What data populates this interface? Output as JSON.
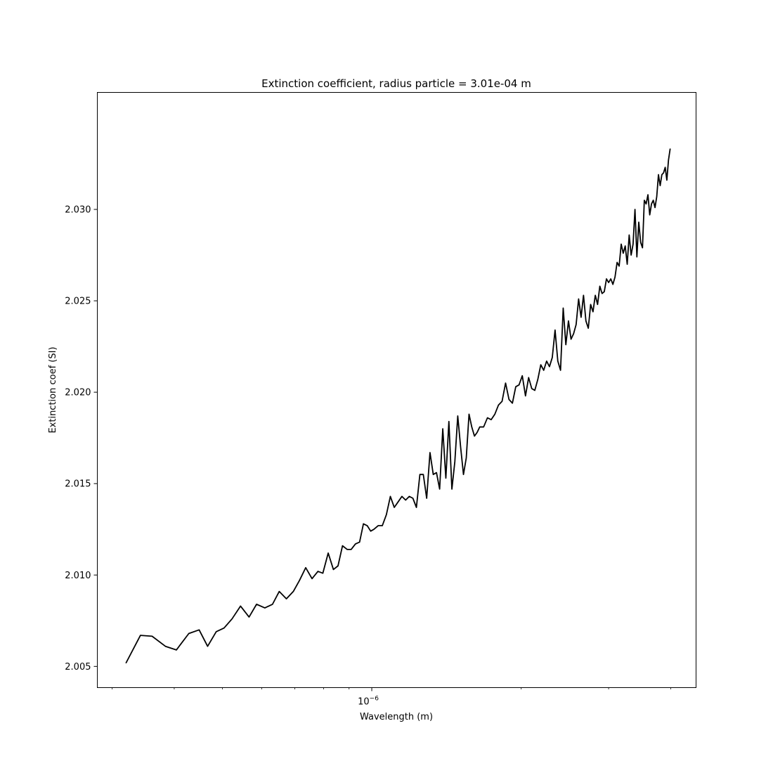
{
  "chart_data": {
    "type": "line",
    "title": "Extinction coefficient, radius particle = 3.01e-04 m",
    "xlabel": "Wavelength (m)",
    "ylabel": "Extinction coef (SI)",
    "xscale": "log",
    "xlim": [
      2.8e-07,
      4.5e-06
    ],
    "ylim": [
      2.00384,
      2.0364
    ],
    "grid": false,
    "line_color": "#000000",
    "x_major_ticks": [
      {
        "value": 1e-06,
        "base": "10",
        "exponent": "−6"
      }
    ],
    "x_minor_ticks": [
      3e-07,
      4e-07,
      5e-07,
      6e-07,
      7e-07,
      8e-07,
      9e-07,
      2e-06,
      3e-06,
      4e-06
    ],
    "y_ticks": [
      {
        "value": 2.005,
        "label": "2.005"
      },
      {
        "value": 2.01,
        "label": "2.010"
      },
      {
        "value": 2.015,
        "label": "2.015"
      },
      {
        "value": 2.02,
        "label": "2.020"
      },
      {
        "value": 2.025,
        "label": "2.025"
      },
      {
        "value": 2.03,
        "label": "2.030"
      }
    ],
    "series": [
      {
        "x": [
          3.2e-07,
          3.42e-07,
          3.61e-07,
          3.84e-07,
          4.04e-07,
          4.28e-07,
          4.49e-07,
          4.67e-07,
          4.86e-07,
          5.04e-07,
          5.23e-07,
          5.44e-07,
          5.66e-07,
          5.86e-07,
          6.09e-07,
          6.31e-07,
          6.51e-07,
          6.73e-07,
          6.95e-07,
          7.15e-07,
          7.36e-07,
          7.58e-07,
          7.79e-07,
          7.97e-07,
          8.17e-07,
          8.37e-07,
          8.55e-07,
          8.73e-07,
          8.92e-07,
          9.09e-07,
          9.27e-07,
          9.45e-07,
          9.62e-07,
          9.79e-07,
          9.95e-07,
          1.01e-06,
          1.03e-06,
          1.05e-06,
          1.07e-06,
          1.09e-06,
          1.11e-06,
          1.13e-06,
          1.15e-06,
          1.17e-06,
          1.19e-06,
          1.21e-06,
          1.23e-06,
          1.25e-06,
          1.27e-06,
          1.29e-06,
          1.31e-06,
          1.33e-06,
          1.35e-06,
          1.37e-06,
          1.39e-06,
          1.41e-06,
          1.43e-06,
          1.45e-06,
          1.47e-06,
          1.49e-06,
          1.51e-06,
          1.53e-06,
          1.55e-06,
          1.57e-06,
          1.59e-06,
          1.61e-06,
          1.63e-06,
          1.65e-06,
          1.68e-06,
          1.71e-06,
          1.74e-06,
          1.77e-06,
          1.8e-06,
          1.83e-06,
          1.86e-06,
          1.89e-06,
          1.92e-06,
          1.95e-06,
          1.98e-06,
          2.01e-06,
          2.04e-06,
          2.07e-06,
          2.1e-06,
          2.13e-06,
          2.16e-06,
          2.19e-06,
          2.22e-06,
          2.25e-06,
          2.28e-06,
          2.31e-06,
          2.34e-06,
          2.37e-06,
          2.4e-06,
          2.43e-06,
          2.46e-06,
          2.49e-06,
          2.52e-06,
          2.55e-06,
          2.58e-06,
          2.61e-06,
          2.64e-06,
          2.67e-06,
          2.7e-06,
          2.73e-06,
          2.76e-06,
          2.79e-06,
          2.82e-06,
          2.85e-06,
          2.88e-06,
          2.91e-06,
          2.94e-06,
          2.97e-06,
          3e-06,
          3.03e-06,
          3.06e-06,
          3.09e-06,
          3.12e-06,
          3.15e-06,
          3.18e-06,
          3.21e-06,
          3.24e-06,
          3.27e-06,
          3.3e-06,
          3.33e-06,
          3.36e-06,
          3.39e-06,
          3.42e-06,
          3.45e-06,
          3.48e-06,
          3.51e-06,
          3.54e-06,
          3.57e-06,
          3.6e-06,
          3.63e-06,
          3.66e-06,
          3.69e-06,
          3.72e-06,
          3.75e-06,
          3.78e-06,
          3.81e-06,
          3.84e-06,
          3.87e-06,
          3.9e-06,
          3.93e-06,
          3.96e-06,
          3.99e-06
        ],
        "y": [
          2.0052,
          2.0067,
          2.00665,
          2.0061,
          2.0059,
          2.0068,
          2.007,
          2.0061,
          2.0069,
          2.0071,
          2.0076,
          2.0083,
          2.0077,
          2.0084,
          2.0082,
          2.0084,
          2.0091,
          2.0087,
          2.0091,
          2.0097,
          2.0104,
          2.0098,
          2.0102,
          2.0101,
          2.0112,
          2.0103,
          2.0105,
          2.0116,
          2.0114,
          2.0114,
          2.0117,
          2.0118,
          2.0128,
          2.0127,
          2.0124,
          2.0125,
          2.0127,
          2.0127,
          2.0133,
          2.0143,
          2.0137,
          2.014,
          2.0143,
          2.0141,
          2.0143,
          2.0142,
          2.0137,
          2.0155,
          2.0155,
          2.0142,
          2.0167,
          2.0155,
          2.0156,
          2.0147,
          2.018,
          2.0153,
          2.0184,
          2.0147,
          2.0162,
          2.0187,
          2.017,
          2.0155,
          2.0164,
          2.0188,
          2.0181,
          2.0176,
          2.0178,
          2.0181,
          2.0181,
          2.0186,
          2.0185,
          2.0188,
          2.0193,
          2.0195,
          2.0205,
          2.0196,
          2.0194,
          2.0203,
          2.0204,
          2.0209,
          2.0198,
          2.0208,
          2.0202,
          2.0201,
          2.0207,
          2.0215,
          2.0212,
          2.0217,
          2.0214,
          2.0219,
          2.0234,
          2.0217,
          2.0212,
          2.0246,
          2.0226,
          2.0239,
          2.0229,
          2.0232,
          2.0237,
          2.0251,
          2.0241,
          2.0253,
          2.0239,
          2.0235,
          2.0248,
          2.0244,
          2.0253,
          2.0248,
          2.0258,
          2.0254,
          2.0255,
          2.0262,
          2.026,
          2.0262,
          2.0259,
          2.0263,
          2.0271,
          2.0269,
          2.0281,
          2.0276,
          2.028,
          2.027,
          2.0286,
          2.0275,
          2.0281,
          2.03,
          2.0274,
          2.0293,
          2.0282,
          2.0279,
          2.0305,
          2.0303,
          2.0308,
          2.0297,
          2.0303,
          2.0305,
          2.0301,
          2.0307,
          2.0319,
          2.0313,
          2.0319,
          2.032,
          2.0323,
          2.0316,
          2.0327,
          2.0333
        ]
      }
    ]
  }
}
